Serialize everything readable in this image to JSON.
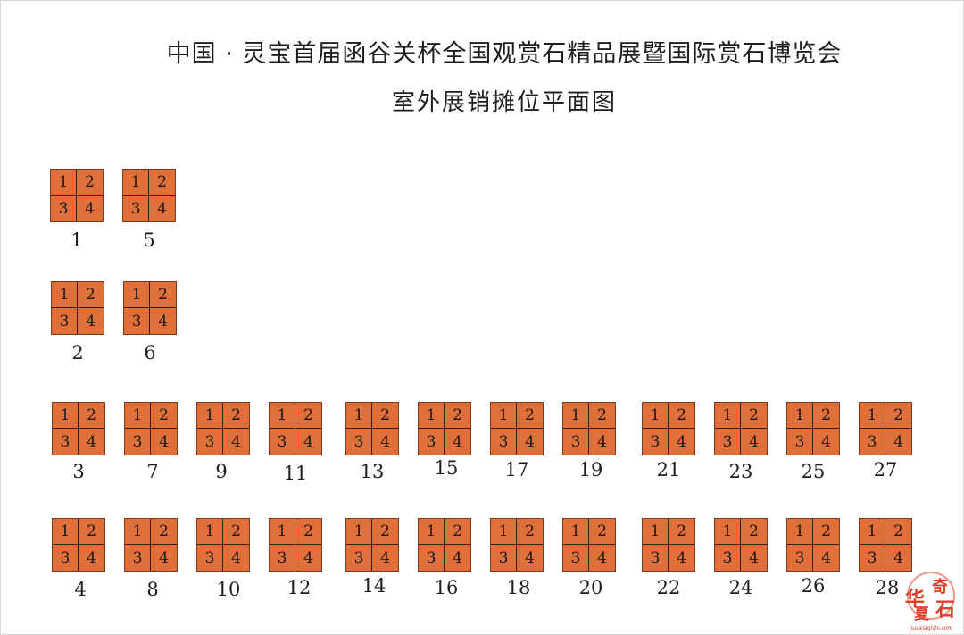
{
  "header": {
    "title": "中国 · 灵宝首届函谷关杯全国观赏石精品展暨国际赏石博览会",
    "subtitle": "室外展销摊位平面图"
  },
  "booth_cells": [
    "1",
    "2",
    "3",
    "4"
  ],
  "colors": {
    "booth_fill": "#e06f3a",
    "booth_border": "#7a3b1c",
    "watermark": "#e0402a"
  },
  "booths": [
    {
      "number": "1"
    },
    {
      "number": "5"
    },
    {
      "number": "2"
    },
    {
      "number": "6"
    },
    {
      "number": "3"
    },
    {
      "number": "7"
    },
    {
      "number": "9"
    },
    {
      "number": "11"
    },
    {
      "number": "13"
    },
    {
      "number": "15"
    },
    {
      "number": "17"
    },
    {
      "number": "19"
    },
    {
      "number": "21"
    },
    {
      "number": "23"
    },
    {
      "number": "25"
    },
    {
      "number": "27"
    },
    {
      "number": "4"
    },
    {
      "number": "8"
    },
    {
      "number": "10"
    },
    {
      "number": "12"
    },
    {
      "number": "14"
    },
    {
      "number": "16"
    },
    {
      "number": "18"
    },
    {
      "number": "20"
    },
    {
      "number": "22"
    },
    {
      "number": "24"
    },
    {
      "number": "26"
    },
    {
      "number": "28"
    }
  ],
  "watermark": {
    "glyph_1": "华",
    "glyph_2": "奇",
    "glyph_3": "夏",
    "glyph_4": "石",
    "url": "huaxiaqishi.com"
  }
}
